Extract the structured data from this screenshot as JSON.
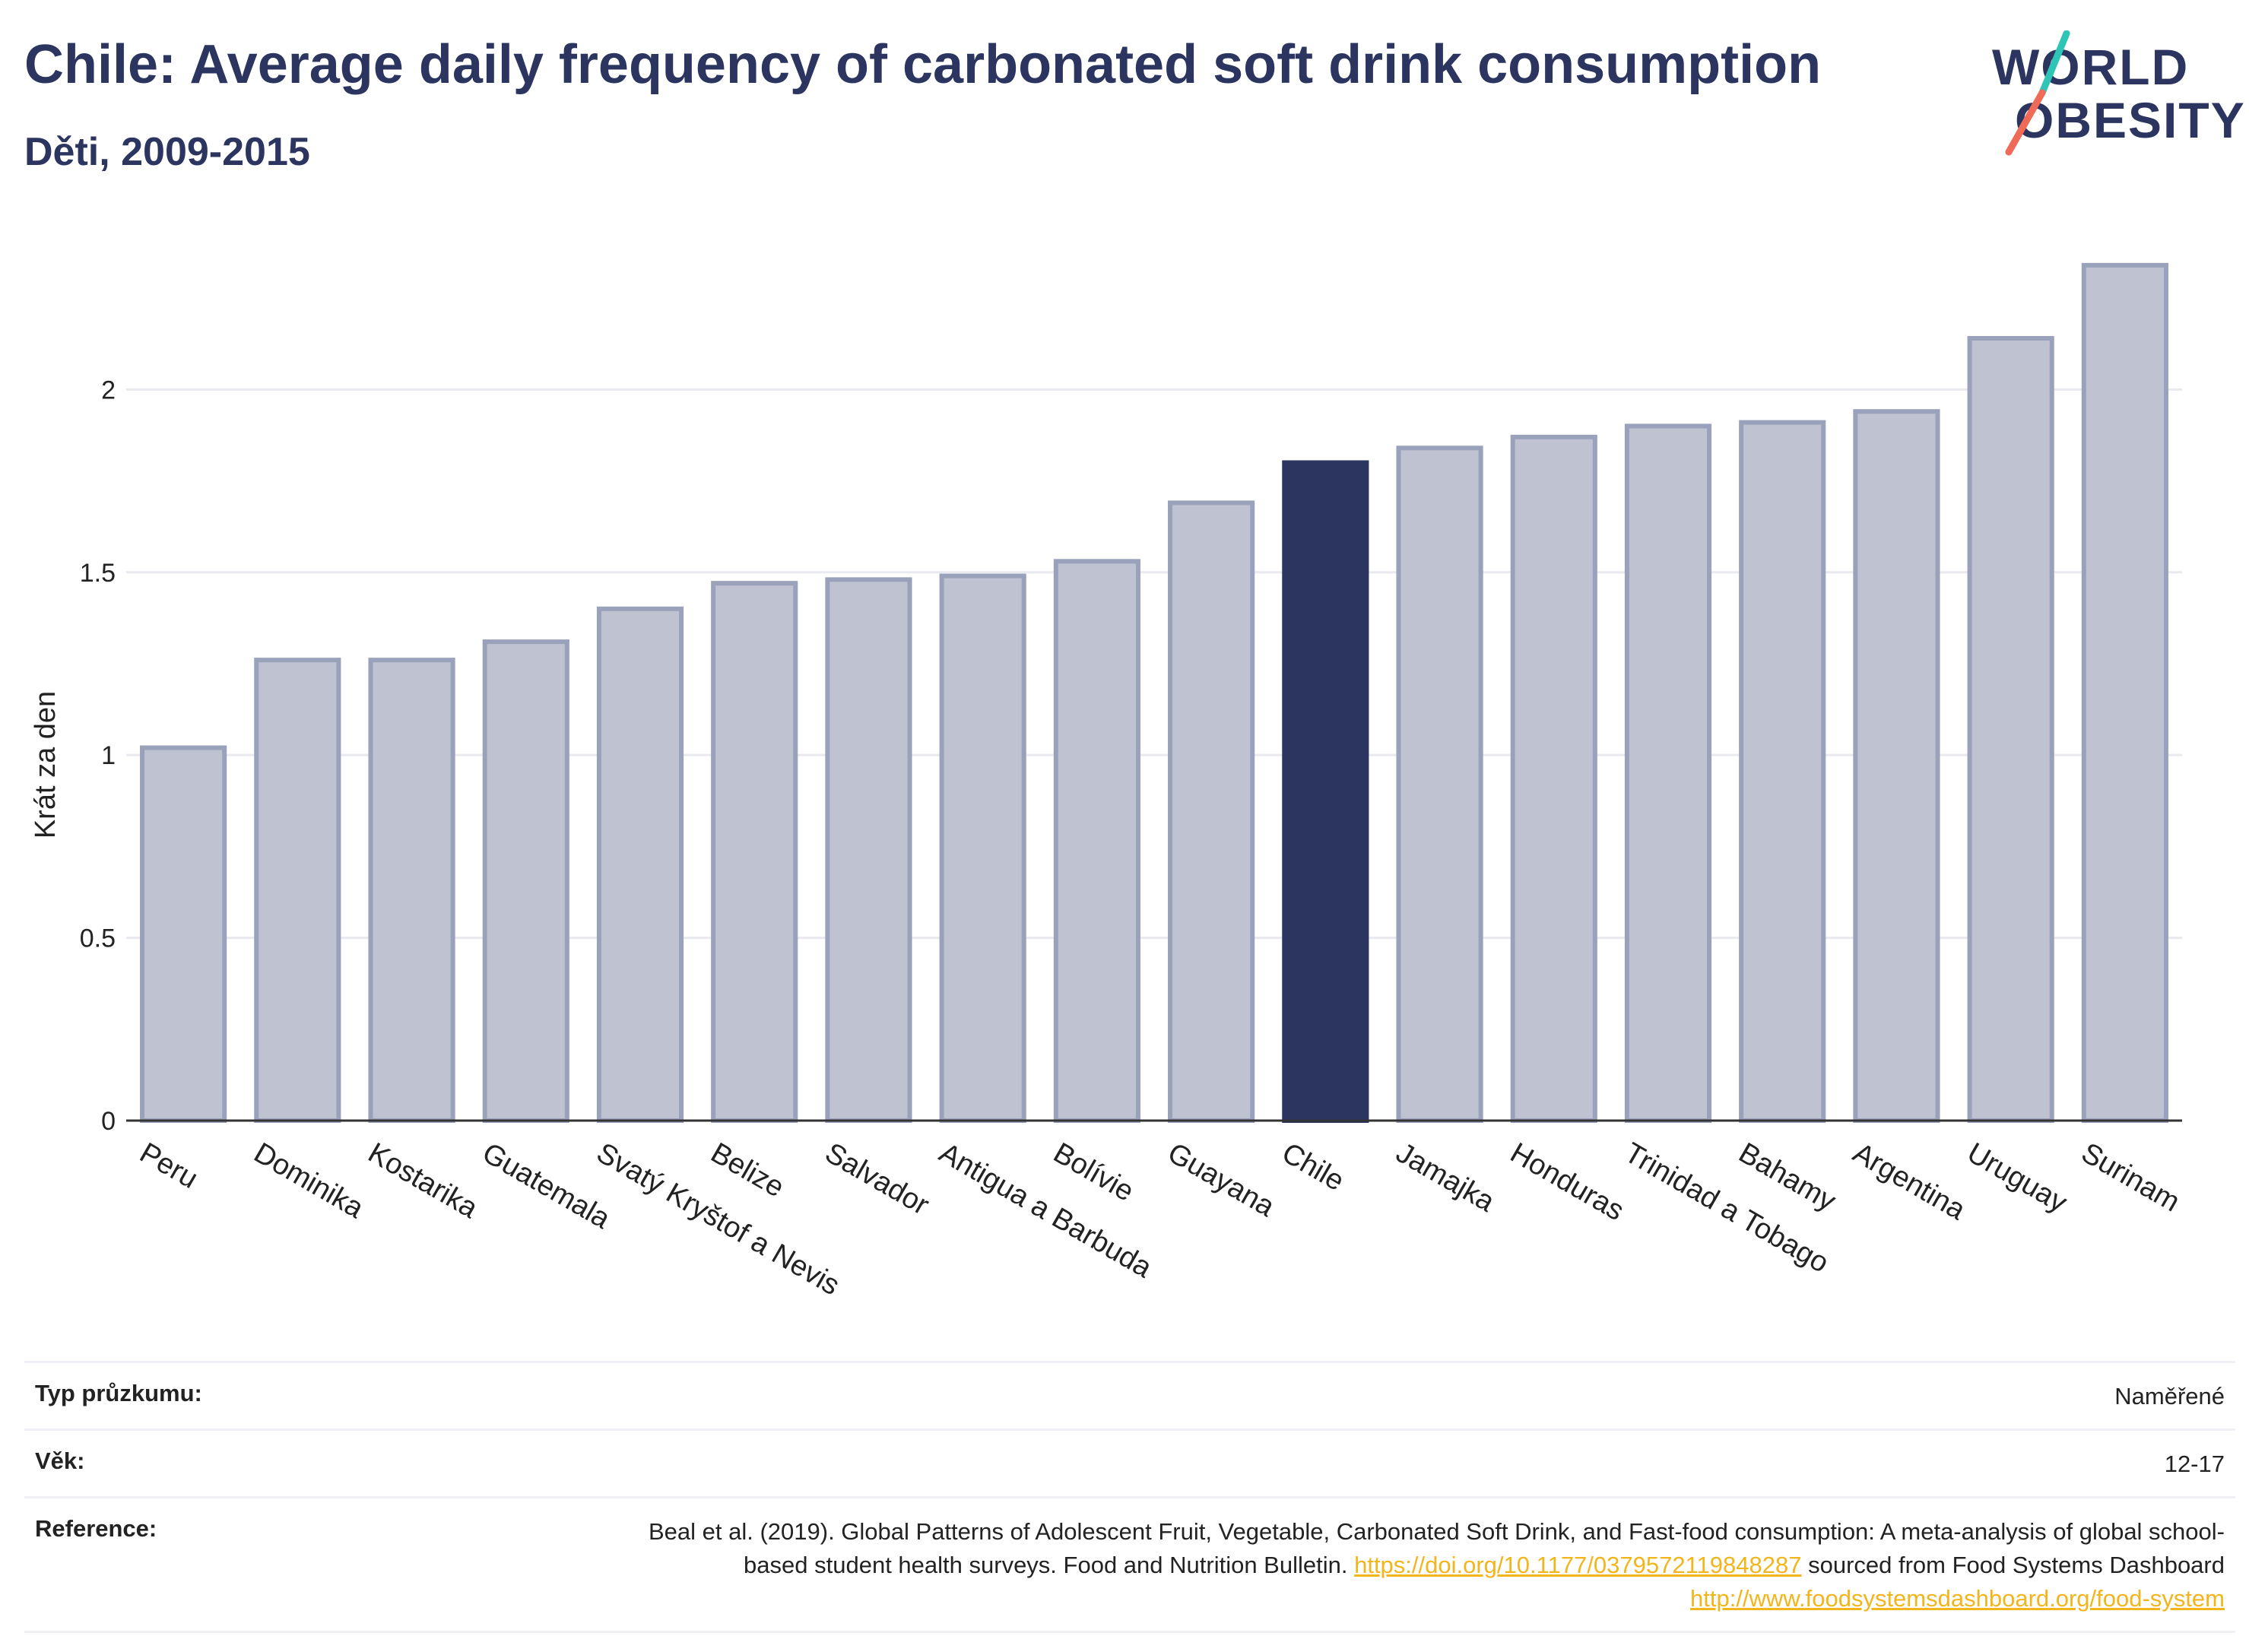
{
  "header": {
    "title": "Chile: Average daily frequency of carbonated soft drink consumption",
    "subtitle": "Děti, 2009-2015"
  },
  "logo": {
    "line1": "WORLD",
    "line2": "OBESITY",
    "slash_colors": [
      "#2ec4b6",
      "#ef6b57"
    ]
  },
  "colors": {
    "bar": "#bec2d1",
    "bar_border": "#9aa1bb",
    "highlight": "#2b3560",
    "grid": "#e8eaf0",
    "axis": "#333333",
    "link": "#f2b51c"
  },
  "chart_data": {
    "type": "bar",
    "title": "Chile: Average daily frequency of carbonated soft drink consumption",
    "subtitle": "Děti, 2009-2015",
    "xlabel": "",
    "ylabel": "Krát za den",
    "ylim": [
      0,
      2.4
    ],
    "yticks": [
      0,
      0.5,
      1,
      1.5,
      2
    ],
    "ytick_labels": [
      "0",
      "0.5",
      "1",
      "1.5",
      "2"
    ],
    "grid": true,
    "highlight": "Chile",
    "categories": [
      "Peru",
      "Dominika",
      "Kostarika",
      "Guatemala",
      "Svatý Kryštof a Nevis",
      "Belize",
      "Salvador",
      "Antigua a Barbuda",
      "Bolívie",
      "Guayana",
      "Chile",
      "Jamajka",
      "Honduras",
      "Trinidad a Tobago",
      "Bahamy",
      "Argentina",
      "Uruguay",
      "Surinam"
    ],
    "values": [
      1.02,
      1.26,
      1.26,
      1.31,
      1.4,
      1.47,
      1.48,
      1.49,
      1.53,
      1.69,
      1.8,
      1.84,
      1.87,
      1.9,
      1.91,
      1.94,
      2.14,
      2.34
    ]
  },
  "meta": {
    "survey_type_label": "Typ průzkumu:",
    "survey_type_value": "Naměřené",
    "age_label": "Věk:",
    "age_value": "12-17",
    "reference_label": "Reference:",
    "reference_text_1": "Beal et al. (2019). Global Patterns of Adolescent Fruit, Vegetable, Carbonated Soft Drink, and Fast-food consumption: A meta-analysis of global school-based student health surveys. Food and Nutrition Bulletin. ",
    "reference_link_1": "https://doi.org/10.1177/0379572119848287",
    "reference_text_2": " sourced from Food Systems Dashboard ",
    "reference_link_2": "http://www.foodsystemsdashboard.org/food-system"
  }
}
